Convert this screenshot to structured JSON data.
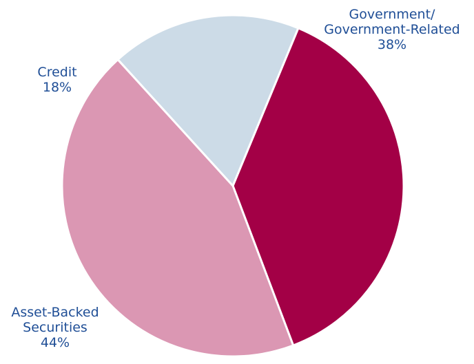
{
  "chart_data": {
    "type": "pie",
    "title": "",
    "slices": [
      {
        "label": [
          "Government/",
          "Government-Related"
        ],
        "percent_label": "38%",
        "value": 38,
        "color": "#a30046"
      },
      {
        "label": [
          "Asset-Backed",
          "Securities"
        ],
        "percent_label": "44%",
        "value": 44,
        "color": "#db97b3"
      },
      {
        "label": [
          "Credit"
        ],
        "percent_label": "18%",
        "value": 18,
        "color": "#ccdbe7"
      }
    ],
    "label_color": "#1f4e96",
    "legend": "none"
  }
}
